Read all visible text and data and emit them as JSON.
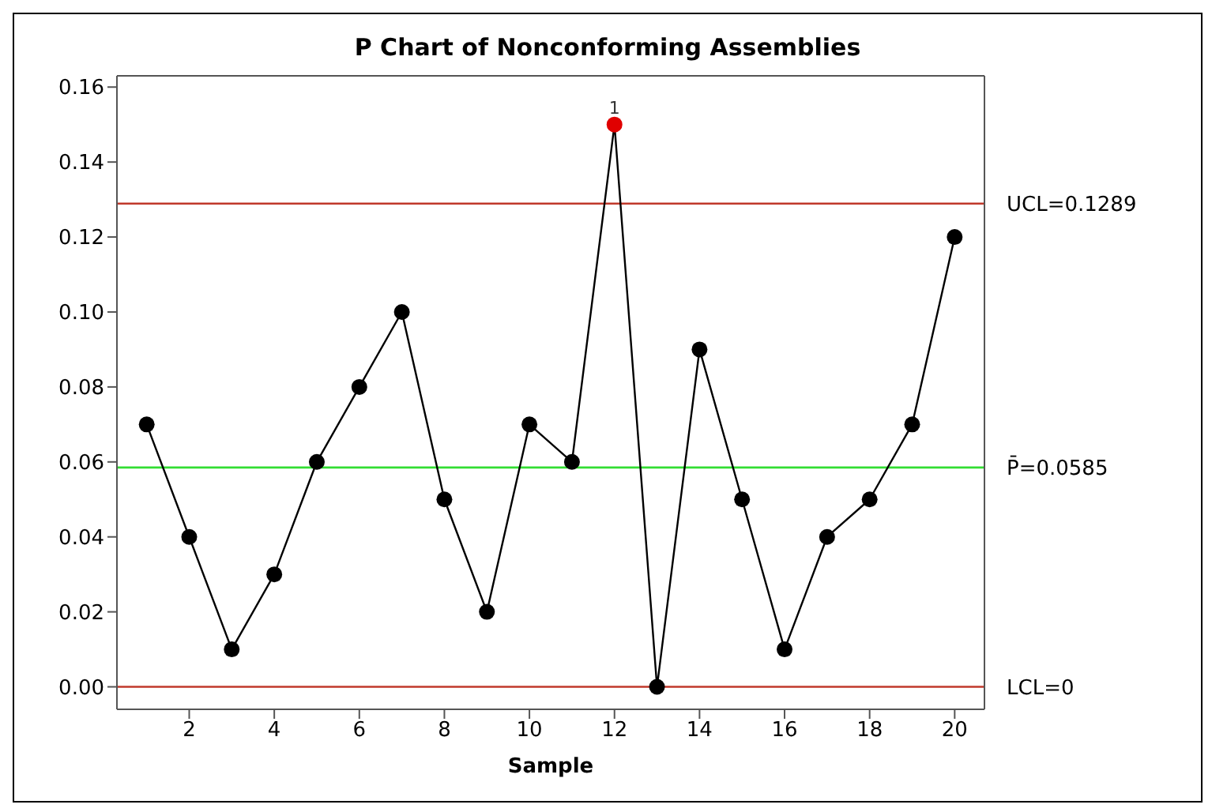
{
  "chart_data": {
    "type": "line",
    "title": "P Chart of Nonconforming Assemblies",
    "xlabel": "Sample",
    "x": [
      1,
      2,
      3,
      4,
      5,
      6,
      7,
      8,
      9,
      10,
      11,
      12,
      13,
      14,
      15,
      16,
      17,
      18,
      19,
      20
    ],
    "series": [
      {
        "color": "#000000",
        "values": [
          0.07,
          0.04,
          0.01,
          0.03,
          0.06,
          0.08,
          0.1,
          0.05,
          0.02,
          0.07,
          0.06,
          0.15,
          0.0,
          0.09,
          0.05,
          0.01,
          0.04,
          0.05,
          0.07,
          0.12
        ],
        "colors": [
          "#000000",
          "#000000",
          "#000000",
          "#000000",
          "#000000",
          "#000000",
          "#000000",
          "#000000",
          "#000000",
          "#000000",
          "#000000",
          "#e00000",
          "#000000",
          "#000000",
          "#000000",
          "#000000",
          "#000000",
          "#000000",
          "#000000",
          "#000000"
        ]
      }
    ],
    "xlim": [
      0.3,
      20.7
    ],
    "xticks": [
      2,
      4,
      6,
      8,
      10,
      12,
      14,
      16,
      18,
      20
    ],
    "ylim": [
      -0.006,
      0.163
    ],
    "yticks": [
      {
        "value": 0,
        "label": "0.00"
      },
      0.02,
      0.04,
      0.06,
      0.08,
      {
        "value": 0.1,
        "label": "0.10"
      },
      0.12,
      0.14,
      0.16
    ],
    "ref_lines": [
      {
        "axis": "y",
        "value": 0.1289,
        "label": "UCL=0.1289",
        "color": "#c0392b"
      },
      {
        "axis": "y",
        "value": 0.0585,
        "label": "P̄=0.0585",
        "color": "#33dd33"
      },
      {
        "axis": "y",
        "value": 0,
        "label": "LCL=0",
        "color": "#c0392b"
      }
    ],
    "annotations": [
      {
        "text": "1",
        "x": 12,
        "y": 0.15
      }
    ],
    "marker": "circle"
  }
}
